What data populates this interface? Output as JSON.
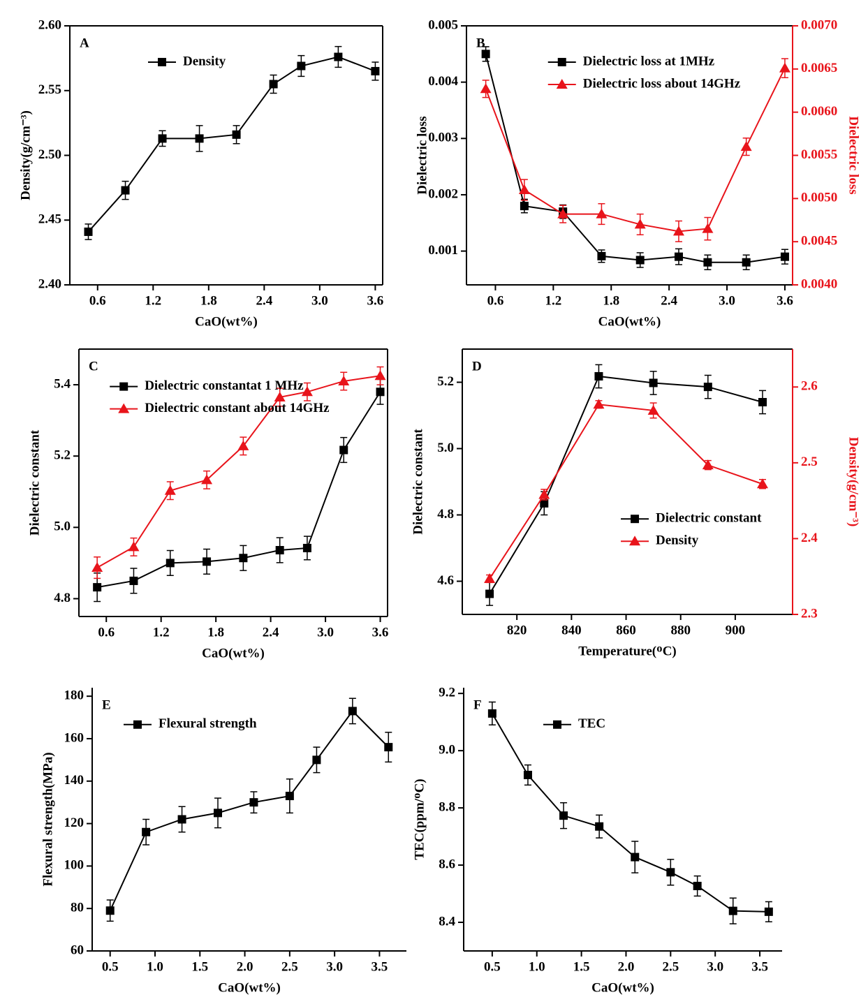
{
  "chart_data": [
    {
      "type": "line",
      "label": "A",
      "xlabel": "CaO(wt%)",
      "ylabel": "Density(g/cm⁻³)",
      "x": [
        0.5,
        0.9,
        1.3,
        1.7,
        2.1,
        2.5,
        2.8,
        3.2,
        3.6
      ],
      "xlim": [
        0.3,
        3.68
      ],
      "xticks": [
        0.6,
        1.2,
        1.8,
        2.4,
        {
          "value": 3,
          "label": "3.0"
        },
        3.6
      ],
      "ylim": [
        2.4,
        2.6
      ],
      "yticks": [
        {
          "value": 2.4,
          "label": "2.40"
        },
        2.45,
        {
          "value": 2.5,
          "label": "2.50"
        },
        2.55,
        {
          "value": 2.6,
          "label": "2.60"
        }
      ],
      "legend": "upper center",
      "frame": "box",
      "series": [
        {
          "name": "Density",
          "color": "#000000",
          "marker": "square",
          "values": [
            2.441,
            2.473,
            2.513,
            2.513,
            2.516,
            2.555,
            2.569,
            2.576,
            2.565
          ],
          "errors": [
            0.006,
            0.007,
            0.006,
            0.01,
            0.007,
            0.007,
            0.008,
            0.008,
            0.007
          ]
        }
      ]
    },
    {
      "type": "line",
      "label": "B",
      "xlabel": "CaO(wt%)",
      "ylabel": "Dielectric loss",
      "y2label": "Dielectric loss",
      "x": [
        0.5,
        0.9,
        1.3,
        1.7,
        2.1,
        2.5,
        2.8,
        3.2,
        3.6
      ],
      "xlim": [
        0.3,
        3.68
      ],
      "xticks": [
        0.6,
        1.2,
        1.8,
        2.4,
        {
          "value": 3,
          "label": "3.0"
        },
        3.6
      ],
      "ylim": [
        0.0004,
        0.005
      ],
      "yticks": [
        0.001,
        0.002,
        0.003,
        0.004,
        0.005
      ],
      "y2lim": [
        0.004,
        0.007
      ],
      "y2ticks": [
        {
          "value": 0.004,
          "label": "0.0040"
        },
        0.0045,
        {
          "value": 0.005,
          "label": "0.0050"
        },
        0.0055,
        {
          "value": 0.006,
          "label": "0.0060"
        },
        0.0065,
        {
          "value": 0.007,
          "label": "0.0070"
        }
      ],
      "legend": "upper center",
      "frame": "box",
      "series": [
        {
          "name": "Dielectric loss at 1MHz",
          "color": "#000000",
          "marker": "square",
          "values": [
            0.0045,
            0.0018,
            0.0017,
            0.00091,
            0.00084,
            0.0009,
            0.0008,
            0.0008,
            0.0009
          ],
          "errors": [
            0.00013,
            0.00012,
            0.00012,
            0.00011,
            0.00013,
            0.00014,
            0.00013,
            0.00013,
            0.00013
          ]
        },
        {
          "name": "Dielectric loss about 14GHz",
          "color": "#e8141b",
          "marker": "triangle",
          "axis": "y2",
          "values": [
            0.00627,
            0.0051,
            0.00482,
            0.00482,
            0.0047,
            0.00462,
            0.00465,
            0.0056,
            0.00651
          ],
          "errors": [
            0.0001,
            0.00012,
            0.0001,
            0.00012,
            0.00012,
            0.00012,
            0.00013,
            0.0001,
            0.00011
          ]
        }
      ]
    },
    {
      "type": "line",
      "label": "C",
      "xlabel": "CaO(wt%)",
      "ylabel": "Dielectric constant",
      "x": [
        0.5,
        0.9,
        1.3,
        1.7,
        2.1,
        2.5,
        2.8,
        3.2,
        3.6
      ],
      "xlim": [
        0.3,
        3.68
      ],
      "xticks": [
        0.6,
        1.2,
        1.8,
        2.4,
        {
          "value": 3,
          "label": "3.0"
        },
        3.6
      ],
      "ylim": [
        4.75,
        5.5
      ],
      "yticks": [
        4.8,
        {
          "value": 5,
          "label": "5.0"
        },
        5.2,
        5.4
      ],
      "legend": "upper left",
      "frame": "box",
      "series": [
        {
          "name": "Dielectric constantat 1 MHz",
          "color": "#000000",
          "marker": "square",
          "values": [
            4.832,
            4.85,
            4.9,
            4.904,
            4.914,
            4.936,
            4.942,
            5.217,
            5.38
          ],
          "errors": [
            0.04,
            0.035,
            0.035,
            0.035,
            0.035,
            0.035,
            0.033,
            0.035,
            0.035
          ]
        },
        {
          "name": "Dielectric constant about 14GHz",
          "color": "#e8141b",
          "marker": "triangle",
          "values": [
            4.887,
            4.945,
            5.103,
            5.133,
            5.228,
            5.365,
            5.38,
            5.41,
            5.425
          ],
          "errors": [
            0.03,
            0.025,
            0.025,
            0.025,
            0.025,
            0.025,
            0.025,
            0.025,
            0.025
          ]
        }
      ]
    },
    {
      "type": "line",
      "label": "D",
      "xlabel": "Temperature(ᴼC)",
      "ylabel": "Dielectric constant",
      "y2label": "Density(g/cm⁻³)",
      "x": [
        810,
        830,
        850,
        870,
        890,
        910
      ],
      "xlim": [
        800,
        921
      ],
      "xticks": [
        820,
        840,
        860,
        880,
        900
      ],
      "ylim": [
        4.5,
        5.3
      ],
      "yticks": [
        4.6,
        4.8,
        {
          "value": 5,
          "label": "5.0"
        },
        5.2
      ],
      "y2lim": [
        2.3,
        2.65
      ],
      "y2ticks": [
        2.3,
        2.4,
        2.5,
        2.6
      ],
      "legend": "lower right",
      "frame": "box",
      "series": [
        {
          "name": "Dielectric constant",
          "color": "#000000",
          "marker": "square",
          "values": [
            4.562,
            4.835,
            5.218,
            5.198,
            5.186,
            5.14
          ],
          "errors": [
            0.035,
            0.035,
            0.035,
            0.035,
            0.035,
            0.035
          ]
        },
        {
          "name": "Density",
          "color": "#e8141b",
          "marker": "triangle",
          "axis": "y2",
          "values": [
            2.347,
            2.458,
            2.577,
            2.569,
            2.497,
            2.472
          ],
          "errors": [
            0.005,
            0.007,
            0.005,
            0.01,
            0.006,
            0.006
          ]
        }
      ]
    },
    {
      "type": "line",
      "label": "E",
      "xlabel": "CaO(wt%)",
      "ylabel": "Flexural strength(MPa)",
      "x": [
        0.5,
        0.9,
        1.3,
        1.7,
        2.1,
        2.5,
        2.8,
        3.2,
        3.6
      ],
      "xlim": [
        0.3,
        3.8
      ],
      "xticks": [
        0.5,
        {
          "value": 1,
          "label": "1.0"
        },
        1.5,
        {
          "value": 2,
          "label": "2.0"
        },
        2.5,
        {
          "value": 3,
          "label": "3.0"
        },
        3.5
      ],
      "ylim": [
        60,
        184
      ],
      "yticks": [
        60,
        80,
        100,
        120,
        140,
        160,
        180
      ],
      "legend": "upper left",
      "frame": "axes",
      "series": [
        {
          "name": "Flexural strength",
          "color": "#000000",
          "marker": "square",
          "values": [
            79,
            116,
            122,
            125,
            130,
            133,
            150,
            173,
            156
          ],
          "errors": [
            5,
            6,
            6,
            7,
            5,
            8,
            6,
            6,
            7
          ]
        }
      ]
    },
    {
      "type": "line",
      "label": "F",
      "xlabel": "CaO(wt%)",
      "ylabel": "TEC(ppm/ᴼC)",
      "x": [
        0.5,
        0.9,
        1.3,
        1.7,
        2.1,
        2.5,
        2.8,
        3.2,
        3.6
      ],
      "xlim": [
        0.18,
        3.75
      ],
      "xticks": [
        0.5,
        {
          "value": 1,
          "label": "1.0"
        },
        1.5,
        {
          "value": 2,
          "label": "2.0"
        },
        2.5,
        {
          "value": 3,
          "label": "3.0"
        },
        3.5
      ],
      "ylim": [
        8.3,
        9.22
      ],
      "yticks": [
        8.4,
        8.6,
        8.8,
        {
          "value": 9,
          "label": "9.0"
        },
        9.2
      ],
      "legend": "upper center",
      "frame": "axes",
      "series": [
        {
          "name": "TEC",
          "color": "#000000",
          "marker": "square",
          "values": [
            9.13,
            8.915,
            8.773,
            8.735,
            8.628,
            8.575,
            8.527,
            8.44,
            8.437
          ],
          "errors": [
            0.04,
            0.035,
            0.045,
            0.04,
            0.055,
            0.045,
            0.035,
            0.045,
            0.035
          ]
        }
      ]
    }
  ]
}
